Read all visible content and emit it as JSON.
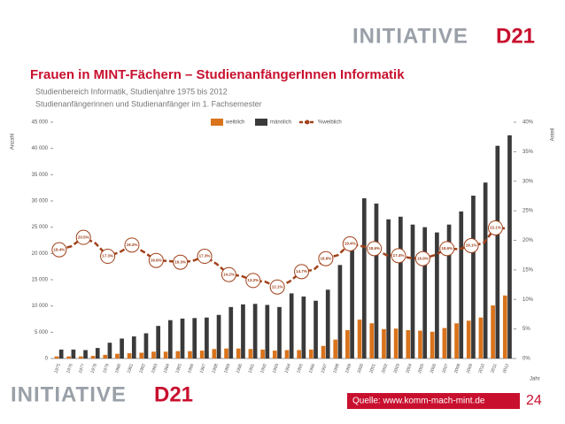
{
  "logo": {
    "name": "INITIATIVE",
    "mark": "D21"
  },
  "chart_data": {
    "type": "bar",
    "title": "Frauen in MINT-Fächern – StudienanfängerInnen Informatik",
    "subtitle": [
      "Studienbereich Informatik, Studienjahre 1975 bis 2012",
      "Studienanfängerinnen und Studienanfänger im 1. Fachsemester"
    ],
    "y_label": "Anzahl",
    "y2_label": "Anteil",
    "x_label": "Jahr",
    "categories": [
      "1975",
      "1976",
      "1977",
      "1978",
      "1979",
      "1980",
      "1981",
      "1982",
      "1983",
      "1984",
      "1985",
      "1986",
      "1987",
      "1988",
      "1989",
      "1990",
      "1991",
      "1992",
      "1993",
      "1994",
      "1995",
      "1996",
      "1997",
      "1998",
      "1999",
      "2000",
      "2001",
      "2002",
      "2003",
      "2004",
      "2005",
      "2006",
      "2007",
      "2008",
      "2009",
      "2010",
      "2011",
      "2012"
    ],
    "series": [
      {
        "name": "weiblich",
        "color": "#d9731c",
        "values": [
          400,
          400,
          400,
          500,
          700,
          900,
          1000,
          1100,
          1300,
          1300,
          1400,
          1400,
          1500,
          1800,
          1900,
          1900,
          1800,
          1700,
          1500,
          1600,
          1600,
          1700,
          2400,
          3600,
          5400,
          7400,
          6700,
          5600,
          5700,
          5400,
          5300,
          5100,
          5800,
          6700,
          7200,
          7800,
          10100,
          12000
        ]
      },
      {
        "name": "männlich",
        "color": "#3a3a3a",
        "values": [
          1700,
          1700,
          1600,
          2000,
          3000,
          3800,
          4200,
          4800,
          6200,
          7300,
          7600,
          7700,
          7800,
          8300,
          9800,
          10300,
          10400,
          10200,
          9800,
          12400,
          11800,
          11000,
          13100,
          17800,
          22500,
          30500,
          29500,
          26500,
          27000,
          25500,
          25000,
          24000,
          25500,
          28000,
          31000,
          33500,
          40500,
          42500
        ]
      },
      {
        "name": "%weiblich",
        "type": "line",
        "axis": "y2",
        "color": "#a0411a",
        "values": [
          18.4,
          19,
          20.5,
          19.5,
          17.3,
          18,
          19.2,
          18,
          16.6,
          16.5,
          16.3,
          16.5,
          17.3,
          16,
          14.2,
          14,
          13.2,
          13,
          12.1,
          13,
          14.7,
          15,
          16.9,
          17.5,
          19.4,
          19,
          18.6,
          17.5,
          17.4,
          17,
          16.9,
          17.5,
          18.6,
          18.5,
          19.1,
          19.5,
          22.1,
          22
        ],
        "value_labels": [
          "18.4%",
          null,
          "20.5%",
          null,
          "17.3%",
          null,
          "19.2%",
          null,
          "16.6%",
          null,
          "16.3%",
          null,
          "17.3%",
          null,
          "14.2%",
          null,
          "13.2%",
          null,
          "12.1%",
          null,
          "14.7%",
          null,
          "16.9%",
          null,
          "19.4%",
          null,
          "18.6%",
          null,
          "17.4%",
          null,
          "16.9%",
          null,
          "18.6%",
          null,
          "19.1%",
          null,
          "22.1%",
          null
        ]
      }
    ],
    "ylim": [
      0,
      45000
    ],
    "yticks": [
      0,
      {
        "value": 5000,
        "label": "5 000"
      },
      {
        "value": 10000,
        "label": "10 000"
      },
      {
        "value": 15000,
        "label": "15 000"
      },
      {
        "value": 20000,
        "label": "20 000"
      },
      {
        "value": 25000,
        "label": "25 000"
      },
      {
        "value": 30000,
        "label": "30 000"
      },
      {
        "value": 35000,
        "label": "35 000"
      },
      {
        "value": 40000,
        "label": "40 000"
      },
      {
        "value": 45000,
        "label": "45 000"
      }
    ],
    "y2lim": [
      0,
      40
    ],
    "y2ticks": [
      {
        "value": 0,
        "label": "0%"
      },
      {
        "value": 5,
        "label": "5%"
      },
      {
        "value": 10,
        "label": "10%"
      },
      {
        "value": 15,
        "label": "15%"
      },
      {
        "value": 20,
        "label": "20%"
      },
      {
        "value": 25,
        "label": "25%"
      },
      {
        "value": 30,
        "label": "30%"
      },
      {
        "value": 35,
        "label": "35%"
      },
      {
        "value": 40,
        "label": "40%"
      }
    ]
  },
  "footer": {
    "source": "Quelle: www.komm-mach-mint.de",
    "page": "24"
  }
}
